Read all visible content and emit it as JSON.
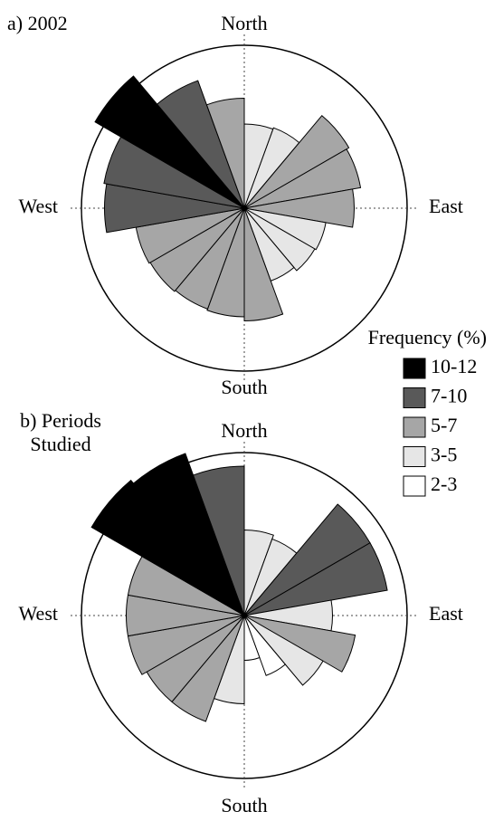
{
  "chart_data": [
    {
      "type": "wind-rose",
      "title": "a) 2002",
      "direction_labels": [
        "North",
        "East",
        "South",
        "West"
      ],
      "values": [
        6.2,
        6.3,
        8.9,
        8.7,
        8.1,
        6.1,
        6.0,
        5.7,
        8.3,
        8.0,
        7.9,
        8.0,
        8.1,
        10.3,
        10.5,
        12.7,
        10.0,
        8.1
      ],
      "colors": [
        "#e6e6e6",
        "#e6e6e6",
        "#a6a6a6",
        "#a6a6a6",
        "#a6a6a6",
        "#e6e6e6",
        "#e6e6e6",
        "#e6e6e6",
        "#a6a6a6",
        "#a6a6a6",
        "#a6a6a6",
        "#a6a6a6",
        "#a6a6a6",
        "#595959",
        "#595959",
        "#000000",
        "#595959",
        "#a6a6a6"
      ],
      "rlim": [
        0,
        12
      ],
      "legend": {
        "title": "Frequency (%)",
        "items": [
          {
            "label": "10-12",
            "color": "#000000"
          },
          {
            "label": "7-10",
            "color": "#595959"
          },
          {
            "label": "5-7",
            "color": "#a6a6a6"
          },
          {
            "label": "3-5",
            "color": "#e6e6e6"
          },
          {
            "label": "2-3",
            "color": "#ffffff"
          }
        ]
      }
    },
    {
      "type": "wind-rose",
      "title": "b) Periods Studied",
      "direction_labels": [
        "North",
        "East",
        "South",
        "West"
      ],
      "values": [
        6.3,
        6.0,
        10.7,
        10.7,
        6.5,
        8.3,
        6.7,
        4.7,
        3.3,
        6.5,
        8.3,
        8.3,
        8.7,
        8.7,
        8.7,
        13.0,
        12.7,
        11.0
      ],
      "colors": [
        "#e6e6e6",
        "#e6e6e6",
        "#595959",
        "#595959",
        "#e6e6e6",
        "#a6a6a6",
        "#e6e6e6",
        "#ffffff",
        "#ffffff",
        "#e6e6e6",
        "#a6a6a6",
        "#a6a6a6",
        "#a6a6a6",
        "#a6a6a6",
        "#a6a6a6",
        "#000000",
        "#000000",
        "#595959"
      ],
      "rlim": [
        0,
        12
      ]
    }
  ]
}
